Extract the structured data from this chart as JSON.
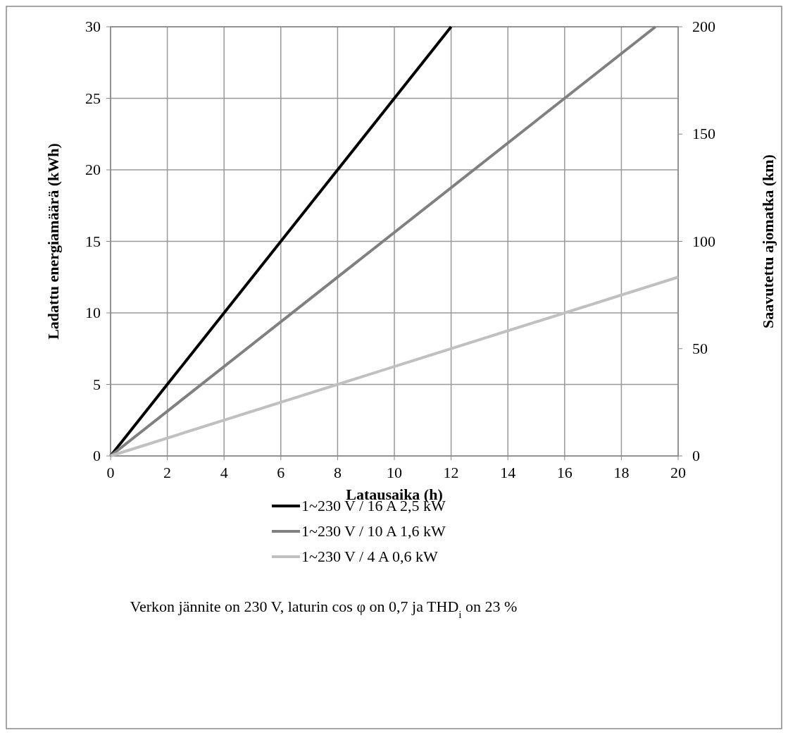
{
  "chart_data": {
    "type": "line",
    "xlabel": "Latausaika (h)",
    "ylabel": "Ladattu energiamäärä  (kWh)",
    "y2label": "Saavutettu ajomatka  (km)",
    "xlim": [
      0,
      20
    ],
    "xticks": [
      0,
      2,
      4,
      6,
      8,
      10,
      12,
      14,
      16,
      18,
      20
    ],
    "ylim": [
      0,
      30
    ],
    "yticks": [
      0,
      5,
      10,
      15,
      20,
      25,
      30
    ],
    "y2lim": [
      0,
      200
    ],
    "y2ticks": [
      0,
      50,
      100,
      150,
      200
    ],
    "grid": true,
    "legend": "bottom",
    "marker": "none",
    "line_style": "solid",
    "series": [
      {
        "name": "1~230 V / 16 A  2,5 kW",
        "color": "#000000",
        "x": [
          0,
          12
        ],
        "values": [
          0,
          30
        ]
      },
      {
        "name": "1~230 V / 10 A  1,6 kW",
        "color": "#808080",
        "x": [
          0,
          19.2
        ],
        "values": [
          0,
          30
        ]
      },
      {
        "name": "1~230 V / 4 A  0,6 kW",
        "color": "#c0c0c0",
        "x": [
          0,
          20
        ],
        "values": [
          0,
          12.5
        ]
      }
    ],
    "annotations": [
      "Verkon jännite on 230 V, laturin cos φ on 0,7 ja THD$_{i}$ on 23 %"
    ]
  }
}
